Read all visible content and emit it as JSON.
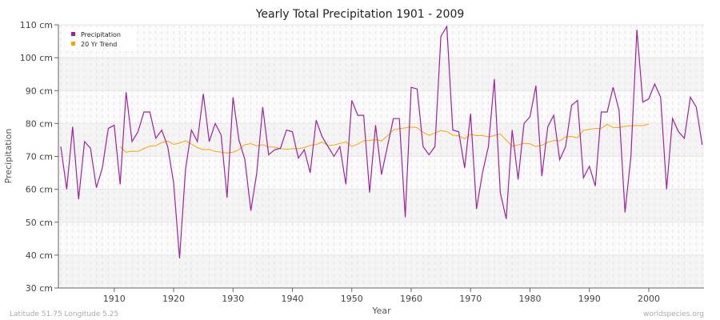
{
  "chart_data": {
    "type": "line",
    "title": "Yearly Total Precipitation 1901 - 2009",
    "xlabel": "Year",
    "ylabel": "Precipitation",
    "xlim": [
      1901,
      2009
    ],
    "ylim": [
      30,
      110
    ],
    "y_ticks": [
      30,
      40,
      50,
      60,
      70,
      80,
      90,
      100,
      110
    ],
    "y_tick_labels": [
      "30 cm",
      "40 cm",
      "50 cm",
      "60 cm",
      "70 cm",
      "80 cm",
      "90 cm",
      "100 cm",
      "110 cm"
    ],
    "x_ticks": [
      1910,
      1920,
      1930,
      1940,
      1950,
      1960,
      1970,
      1980,
      1990,
      2000
    ],
    "x_tick_labels": [
      "1910",
      "1920",
      "1930",
      "1940",
      "1950",
      "1960",
      "1970",
      "1980",
      "1990",
      "2000"
    ],
    "grid": true,
    "legend_position": "top-left",
    "x_start": 1901,
    "series": [
      {
        "name": "Precipitation",
        "color": "#a020a0",
        "values": [
          73,
          60,
          79,
          57,
          74.5,
          72.5,
          60.5,
          66.5,
          78.5,
          79.5,
          61.5,
          89.5,
          74.5,
          77.5,
          83.5,
          83.5,
          75.5,
          78,
          73,
          62,
          39,
          66,
          78,
          74.5,
          89,
          74.5,
          80,
          76.5,
          57.5,
          88,
          75,
          69,
          53.5,
          65,
          85,
          70.5,
          72,
          72.5,
          78,
          77.5,
          69.5,
          72,
          65,
          81,
          76,
          73,
          70,
          73,
          61.5,
          87,
          82.5,
          82.5,
          59,
          79.5,
          64.5,
          73,
          81.5,
          81.5,
          51.5,
          91,
          90.5,
          73,
          70.5,
          73,
          106.5,
          109.5,
          78,
          77.5,
          66.5,
          83,
          54,
          65,
          73,
          93.5,
          59,
          51,
          78,
          63,
          80,
          82,
          91.5,
          64,
          79,
          82.5,
          69,
          73,
          85.5,
          87,
          63.5,
          67,
          61,
          83.5,
          83.5,
          91,
          84,
          53,
          70,
          108.5,
          86.5,
          87.5,
          92,
          88,
          60,
          81.5,
          77.5,
          75.5,
          88,
          85,
          73.5
        ]
      },
      {
        "name": "20 Yr Trend",
        "color": "#ffa500",
        "window": 20
      }
    ]
  },
  "footer": {
    "location": "Latitude 51.75 Longitude 5.25",
    "source": "worldspecies.org"
  }
}
